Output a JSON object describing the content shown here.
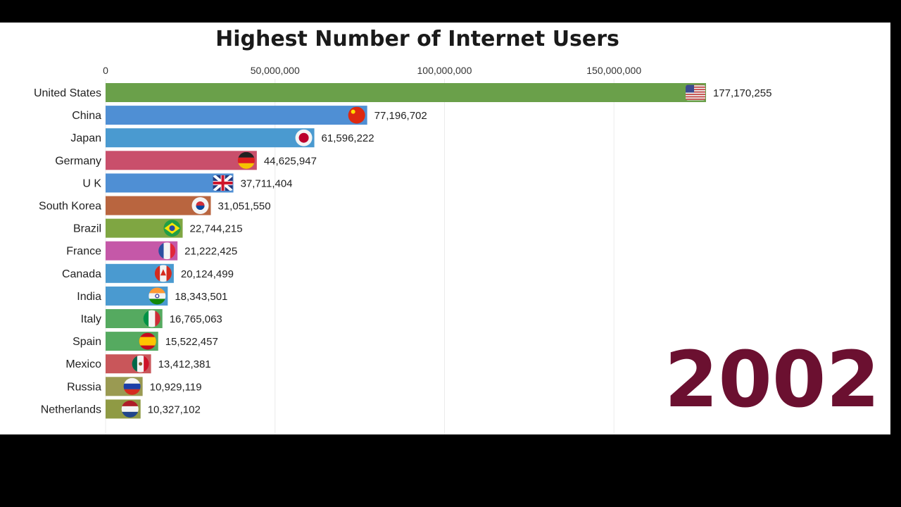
{
  "chart_data": {
    "type": "bar",
    "orientation": "horizontal",
    "title": "Highest Number of Internet Users",
    "xlabel": "",
    "ylabel": "",
    "xlim": [
      0,
      177170255
    ],
    "x_ticks": [
      0,
      50000000,
      100000000,
      150000000
    ],
    "x_tick_labels": [
      "0",
      "50,000,000",
      "100,000,000",
      "150,000,000"
    ],
    "grid": true,
    "year": "2002",
    "year_color": "#6b1030",
    "categories": [
      "United States",
      "China",
      "Japan",
      "Germany",
      "U K",
      "South Korea",
      "Brazil",
      "France",
      "Canada",
      "India",
      "Italy",
      "Spain",
      "Mexico",
      "Russia",
      "Netherlands"
    ],
    "values": [
      177170255,
      77196702,
      61596222,
      44625947,
      37711404,
      31051550,
      22744215,
      21222425,
      20124499,
      18343501,
      16765063,
      15522457,
      13412381,
      10929119,
      10327102
    ],
    "value_labels": [
      "177,170,255",
      "77,196,702",
      "61,596,222",
      "44,625,947",
      "37,711,404",
      "31,051,550",
      "22,744,215",
      "21,222,425",
      "20,124,499",
      "18,343,501",
      "16,765,063",
      "15,522,457",
      "13,412,381",
      "10,929,119",
      "10,327,102"
    ],
    "bar_colors": [
      "#6aa04a",
      "#4f8fd4",
      "#4a9ad0",
      "#c94f6b",
      "#4f8fd4",
      "#b9653f",
      "#7fa642",
      "#c558a8",
      "#4a9ad0",
      "#4a9ad0",
      "#55aa60",
      "#55aa60",
      "#c9565a",
      "#9a9a52",
      "#8f9a44"
    ],
    "flags": [
      "us-flag-icon",
      "china-flag-icon",
      "japan-flag-icon",
      "germany-flag-icon",
      "uk-flag-icon",
      "south-korea-flag-icon",
      "brazil-flag-icon",
      "france-flag-icon",
      "canada-flag-icon",
      "india-flag-icon",
      "italy-flag-icon",
      "spain-flag-icon",
      "mexico-flag-icon",
      "russia-flag-icon",
      "netherlands-flag-icon"
    ]
  }
}
